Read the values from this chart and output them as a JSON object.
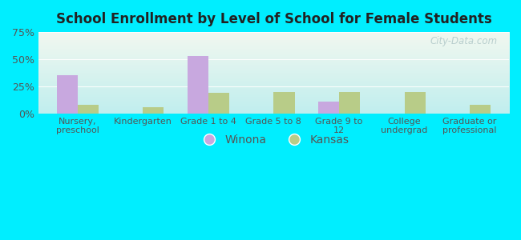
{
  "title": "School Enrollment by Level of School for Female Students",
  "categories": [
    "Nursery,\npreschool",
    "Kindergarten",
    "Grade 1 to 4",
    "Grade 5 to 8",
    "Grade 9 to\n12",
    "College\nundergrad",
    "Graduate or\nprofessional"
  ],
  "winona_values": [
    35,
    0,
    53,
    0,
    11,
    0,
    0
  ],
  "kansas_values": [
    8,
    6,
    19,
    20,
    20,
    20,
    8
  ],
  "winona_color": "#c8a8df",
  "kansas_color": "#b8cc88",
  "ylim": [
    0,
    75
  ],
  "yticks": [
    0,
    25,
    50,
    75
  ],
  "ytick_labels": [
    "0%",
    "25%",
    "50%",
    "75%"
  ],
  "background_outer": "#00eeff",
  "background_inner_topleft": "#f2f8f0",
  "background_inner_bottomright": "#c0eeee",
  "legend_winona": "Winona",
  "legend_kansas": "Kansas",
  "bar_width": 0.32,
  "title_color": "#222222",
  "tick_color": "#555555",
  "watermark": "City-Data.com"
}
